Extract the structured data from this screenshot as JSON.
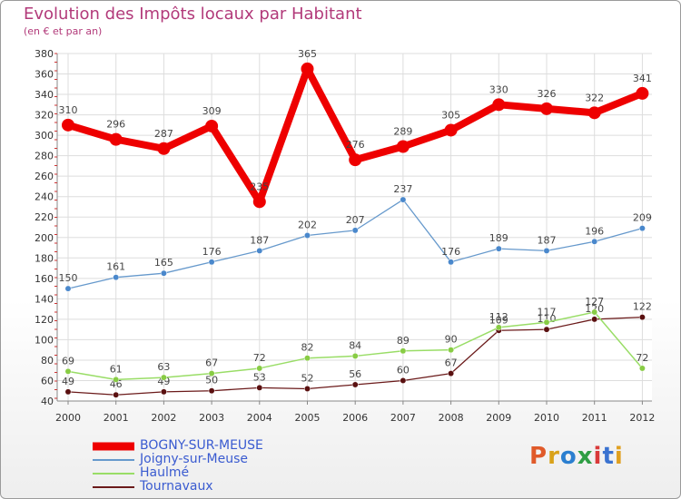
{
  "header": {
    "title": "Evolution des Impôts locaux par Habitant",
    "subtitle": "(en € et par an)"
  },
  "logo": {
    "text": "Proxiti",
    "colors": [
      "#e05a2a",
      "#d9a21a",
      "#2b7fd0",
      "#2f9e44",
      "#d93a3a",
      "#3a72d0",
      "#e0a020"
    ]
  },
  "chart_data": {
    "type": "line",
    "title": "Evolution des Impôts locaux par Habitant",
    "subtitle": "(en € et par an)",
    "x": [
      2000,
      2001,
      2002,
      2003,
      2004,
      2005,
      2006,
      2007,
      2008,
      2009,
      2010,
      2011,
      2012
    ],
    "ylim": [
      40,
      380
    ],
    "yticks": [
      40,
      60,
      80,
      100,
      120,
      140,
      160,
      180,
      200,
      220,
      240,
      260,
      280,
      300,
      320,
      340,
      360,
      380
    ],
    "grid": true,
    "legend_position": "bottom-left",
    "series": [
      {
        "name": "BOGNY-SUR-MEUSE",
        "color": "#ee0000",
        "values": [
          310,
          296,
          287,
          309,
          235,
          365,
          276,
          289,
          305,
          330,
          326,
          322,
          341
        ]
      },
      {
        "name": "Joigny-sur-Meuse",
        "color": "#6699cc",
        "values": [
          150,
          161,
          165,
          176,
          187,
          202,
          207,
          237,
          176,
          189,
          187,
          196,
          209
        ]
      },
      {
        "name": "Haulmé",
        "color": "#99dd66",
        "values": [
          69,
          61,
          63,
          67,
          72,
          82,
          84,
          89,
          90,
          112,
          117,
          127,
          72
        ]
      },
      {
        "name": "Tournavaux",
        "color": "#6b1a1a",
        "values": [
          49,
          46,
          49,
          50,
          53,
          52,
          56,
          60,
          67,
          109,
          110,
          120,
          122
        ]
      }
    ],
    "data_labels": [
      [
        "310",
        "296",
        "287",
        "309",
        "235",
        "365",
        "276",
        "289",
        "305",
        "330",
        "326",
        "322",
        "341"
      ],
      [
        "150",
        "161",
        "165",
        "176",
        "187",
        "202",
        "207",
        "237",
        "176",
        "189",
        "187",
        "196",
        "209"
      ],
      [
        "69",
        "61",
        "63",
        "67",
        "72",
        "82",
        "84",
        "89",
        "90",
        "112",
        "117",
        "127",
        "72"
      ],
      [
        "49",
        "46",
        "49",
        "50",
        "53",
        "52",
        "56",
        "60",
        "67",
        "109",
        "110",
        "120",
        "122"
      ]
    ]
  }
}
